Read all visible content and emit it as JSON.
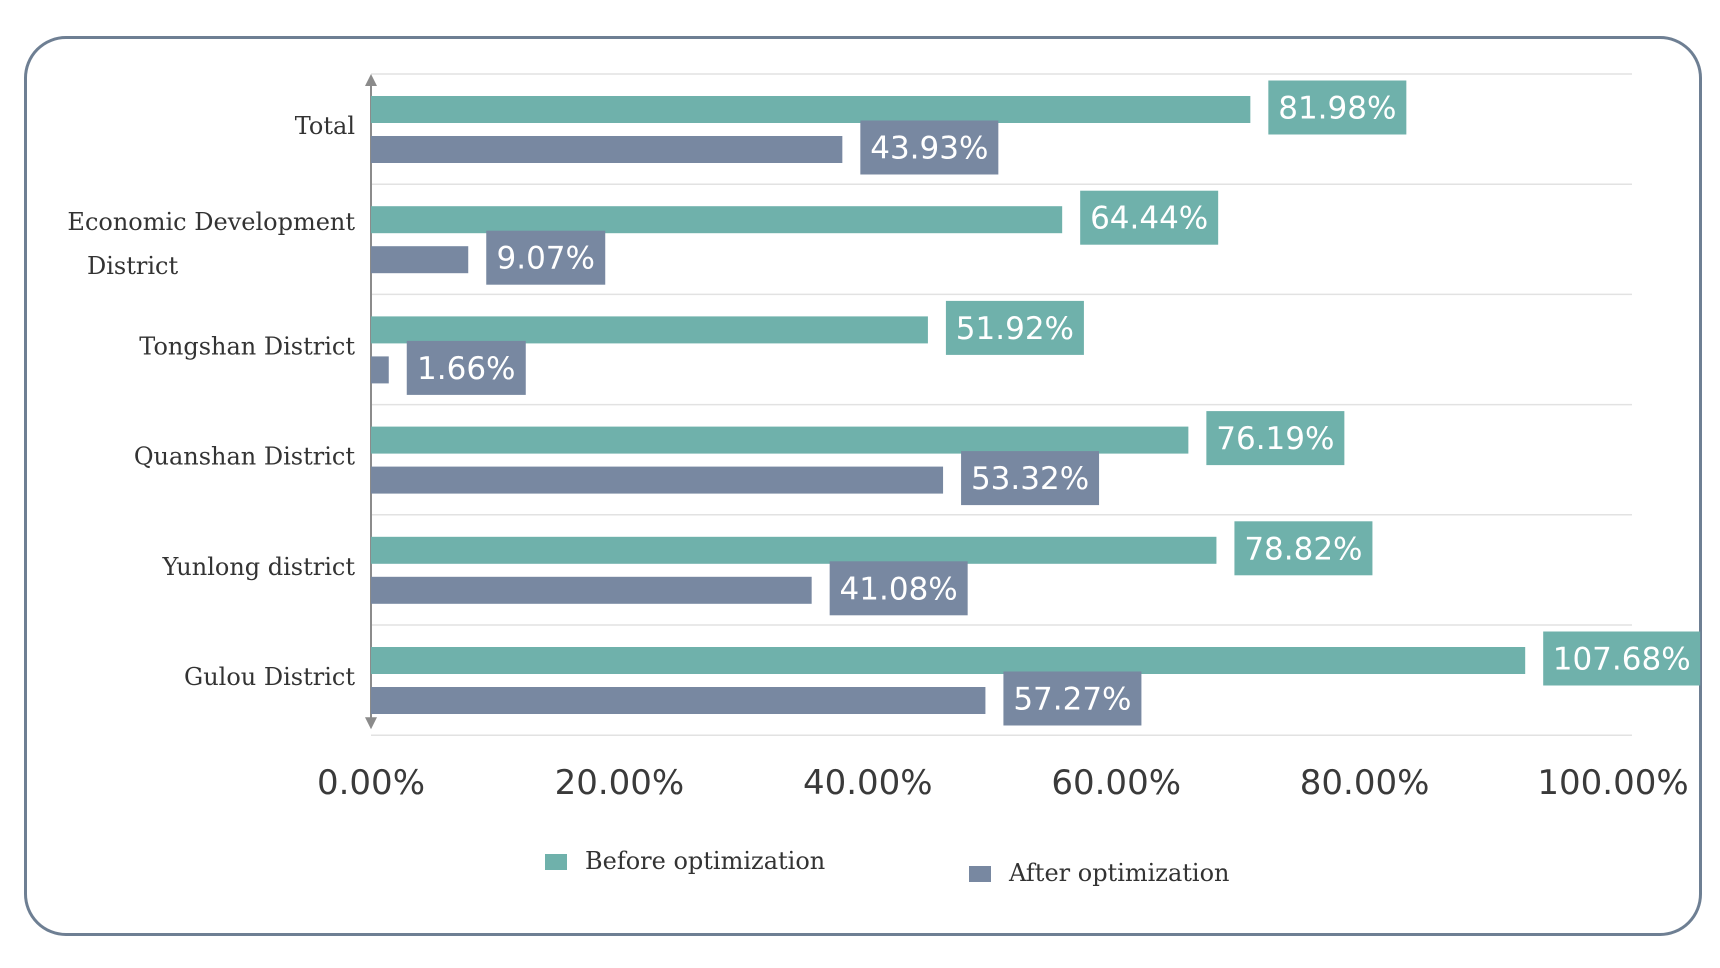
{
  "chart_data": {
    "type": "bar",
    "orientation": "horizontal",
    "title": "",
    "xlabel": "",
    "ylabel": "",
    "categories": [
      "Total",
      "Economic Development District",
      "Tongshan District",
      "Quanshan District",
      "Yunlong district",
      "Gulou District"
    ],
    "category_lines": [
      [
        "Total"
      ],
      [
        "Economic Development",
        "District"
      ],
      [
        "Tongshan District"
      ],
      [
        "Quanshan District"
      ],
      [
        "Yunlong district"
      ],
      [
        "Gulou District"
      ]
    ],
    "series": [
      {
        "name": "Before optimization",
        "color": "#6fb1ab",
        "label_bg": "#6fb1ab",
        "values": [
          81.98,
          64.44,
          51.92,
          76.19,
          78.82,
          107.68
        ],
        "bar_values": [
          70.8,
          55.65,
          44.84,
          65.81,
          68.07,
          92.93
        ],
        "labels": [
          "81.98%",
          "64.44%",
          "51.92%",
          "76.19%",
          "78.82%",
          "107.68%"
        ]
      },
      {
        "name": "After optimization",
        "color": "#7888a1",
        "label_bg": "#7888a1",
        "values": [
          43.93,
          9.07,
          1.66,
          53.32,
          41.08,
          57.27
        ],
        "bar_values": [
          37.95,
          7.83,
          1.43,
          46.06,
          35.48,
          49.47
        ],
        "labels": [
          "43.93%",
          "9.07%",
          "1.66%",
          "53.32%",
          "41.08%",
          "57.27%"
        ]
      }
    ],
    "xlim": [
      0,
      100
    ],
    "xticks": [
      0,
      20,
      40,
      60,
      80,
      100
    ],
    "xtick_labels": [
      "0.00%",
      "20.00%",
      "40.00%",
      "60.00%",
      "80.00%",
      "100.00%"
    ],
    "grid": true,
    "legend": [
      "Before optimization",
      "After optimization"
    ],
    "legend_position": "bottom"
  }
}
